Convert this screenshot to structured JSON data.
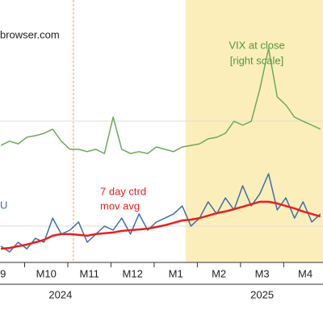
{
  "chart_data": {
    "type": "line",
    "source": "browser.com",
    "annotations": {
      "vix_line1": "VIX at close",
      "vix_line2": "[right scale]",
      "ma_line1": "7 day ctrd",
      "ma_line2": "mov avg",
      "epu": "U"
    },
    "x": [
      9.45,
      9.65,
      9.85,
      10.05,
      10.25,
      10.45,
      10.65,
      10.85,
      11.05,
      11.25,
      11.45,
      11.65,
      11.85,
      12.05,
      12.25,
      12.45,
      12.65,
      12.85,
      13.05,
      13.25,
      13.45,
      13.65,
      13.85,
      14.05,
      14.25,
      14.45,
      14.65,
      14.85,
      15.05,
      15.25,
      15.45,
      15.65,
      15.85,
      16.05,
      16.25,
      16.45,
      16.65,
      16.85
    ],
    "series": [
      {
        "name": "U",
        "color": "#3f6fa8",
        "values": [
          6.2,
          4,
          7.7,
          5.2,
          9.2,
          7.7,
          16.9,
          10.8,
          12.3,
          15.4,
          7.7,
          10.8,
          13.8,
          12.3,
          16.9,
          10.8,
          18.5,
          12.3,
          15.4,
          16.9,
          18.5,
          21.5,
          13.8,
          16.9,
          23.1,
          18.5,
          24.6,
          20,
          29.2,
          21.5,
          26.2,
          33.8,
          20,
          24.6,
          16.9,
          23.1,
          15.4,
          18.5
        ]
      },
      {
        "name": "7 day ctrd mov avg",
        "color": "#e8201c",
        "values": [
          5.2,
          5.5,
          6.2,
          6.8,
          7.7,
          8.6,
          10.2,
          10.8,
          10.8,
          10.5,
          10.2,
          10.8,
          11.1,
          11.4,
          12,
          12.3,
          12.6,
          12.9,
          13.5,
          14.2,
          15.1,
          16,
          16.3,
          16.9,
          17.8,
          18.8,
          19.4,
          20.3,
          21.2,
          22.2,
          23.1,
          23.1,
          22.5,
          21.5,
          20.6,
          19.4,
          18.5,
          17.5
        ]
      },
      {
        "name": "VIX at close",
        "color": "#6aaa5a",
        "axis": "y2",
        "values": [
          44.6,
          46.2,
          45.2,
          47.7,
          48.3,
          49.2,
          50.8,
          46.2,
          43.1,
          43.1,
          42.2,
          43.1,
          41.5,
          55.4,
          43.1,
          41.5,
          42.2,
          41.5,
          44,
          43.1,
          42.2,
          44,
          44.6,
          45.2,
          47.1,
          47.7,
          49.2,
          53.8,
          52.3,
          53.8,
          66.2,
          81.5,
          63.1,
          60,
          55.4,
          53.8,
          52.3,
          50.8
        ]
      }
    ],
    "xlim": [
      9.43,
      16.91
    ],
    "xticks": [
      {
        "value": 9.5,
        "label": "9"
      },
      {
        "value": 10.5,
        "label": "M10"
      },
      {
        "value": 11.5,
        "label": "M11"
      },
      {
        "value": 12.5,
        "label": "M12"
      },
      {
        "value": 13.5,
        "label": "M1"
      },
      {
        "value": 14.5,
        "label": "M2"
      },
      {
        "value": 15.5,
        "label": "M3"
      },
      {
        "value": 16.5,
        "label": "M4"
      }
    ],
    "years": [
      {
        "value": 10.83,
        "label": "2024"
      },
      {
        "value": 15.5,
        "label": "2025"
      }
    ],
    "ylim": [
      0,
      100
    ],
    "y2lim": [
      0,
      100
    ],
    "shaded_from": 13.73,
    "event_line": 11.13
  }
}
